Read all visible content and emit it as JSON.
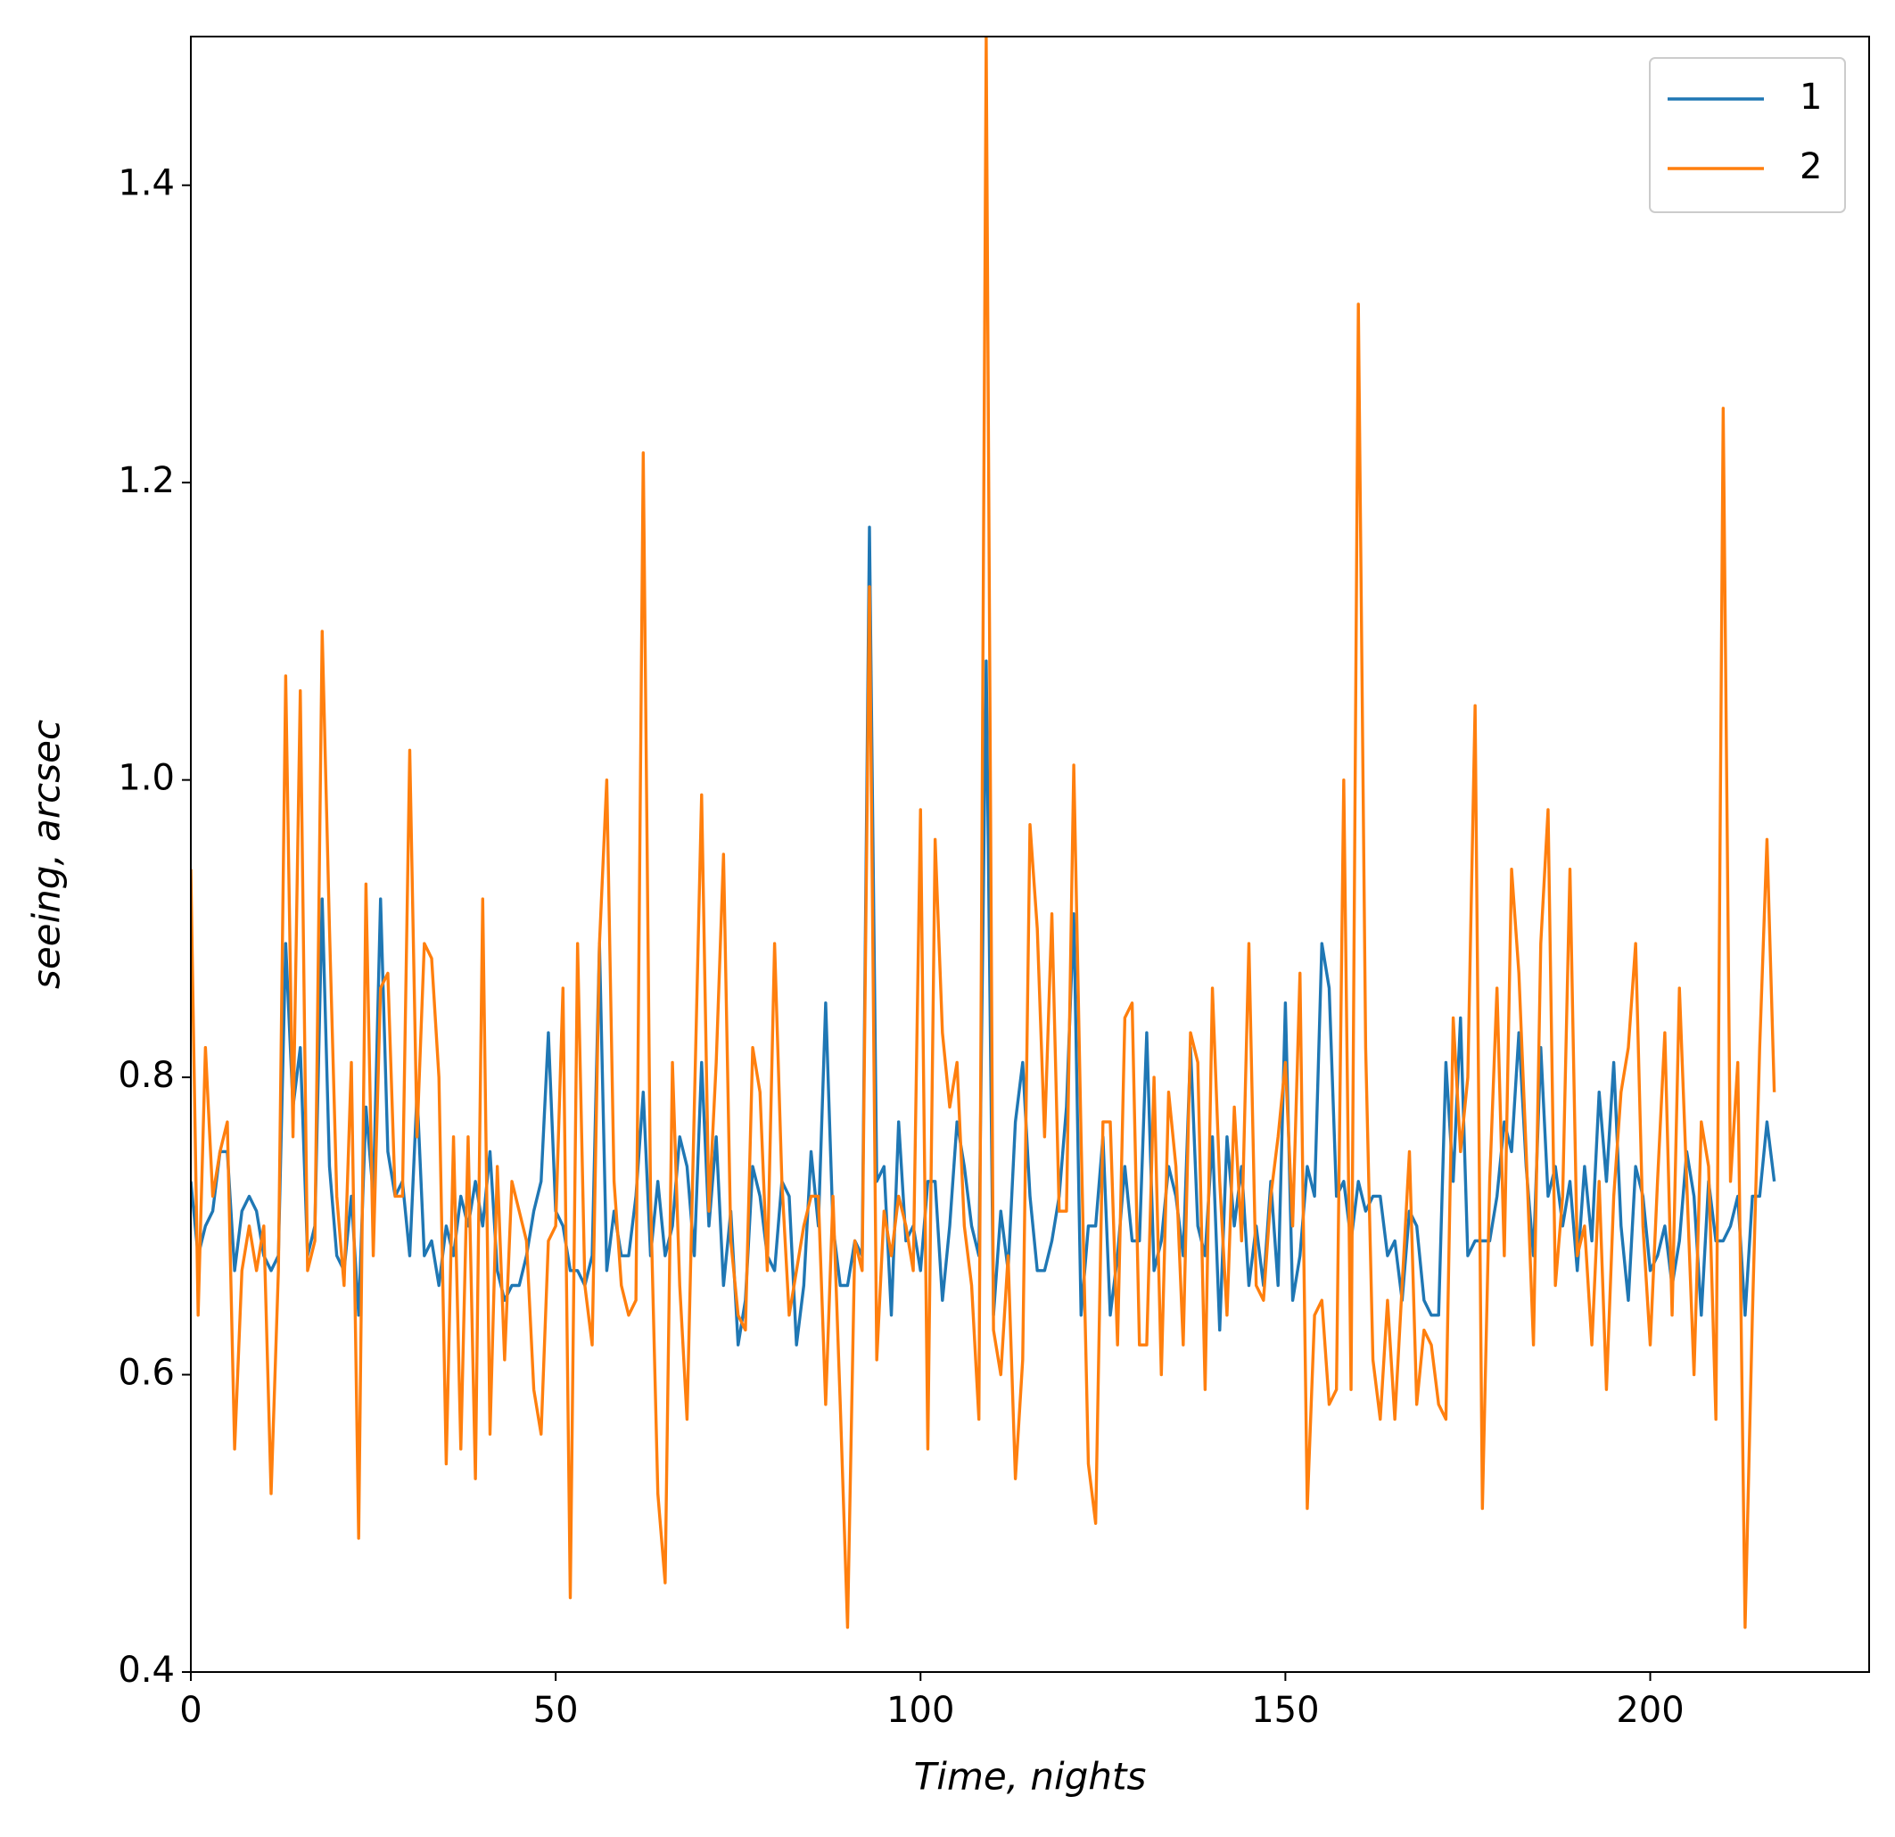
{
  "chart_data": {
    "type": "line",
    "xlabel": "Time, nights",
    "ylabel": "seeing, arcsec",
    "x": [
      0,
      1,
      2,
      3,
      4,
      5,
      6,
      7,
      8,
      9,
      10,
      11,
      12,
      13,
      14,
      15,
      16,
      17,
      18,
      19,
      20,
      21,
      22,
      23,
      24,
      25,
      26,
      27,
      28,
      29,
      30,
      31,
      32,
      33,
      34,
      35,
      36,
      37,
      38,
      39,
      40,
      41,
      42,
      43,
      44,
      45,
      46,
      47,
      48,
      49,
      50,
      51,
      52,
      53,
      54,
      55,
      56,
      57,
      58,
      59,
      60,
      61,
      62,
      63,
      64,
      65,
      66,
      67,
      68,
      69,
      70,
      71,
      72,
      73,
      74,
      75,
      76,
      77,
      78,
      79,
      80,
      81,
      82,
      83,
      84,
      85,
      86,
      87,
      88,
      89,
      90,
      91,
      92,
      93,
      94,
      95,
      96,
      97,
      98,
      99,
      100,
      101,
      102,
      103,
      104,
      105,
      106,
      107,
      108,
      109,
      110,
      111,
      112,
      113,
      114,
      115,
      116,
      117,
      118,
      119,
      120,
      121,
      122,
      123,
      124,
      125,
      126,
      127,
      128,
      129,
      130,
      131,
      132,
      133,
      134,
      135,
      136,
      137,
      138,
      139,
      140,
      141,
      142,
      143,
      144,
      145,
      146,
      147,
      148,
      149,
      150,
      151,
      152,
      153,
      154,
      155,
      156,
      157,
      158,
      159,
      160,
      161,
      162,
      163,
      164,
      165,
      166,
      167,
      168,
      169,
      170,
      171,
      172,
      173,
      174,
      175,
      176,
      177,
      178,
      179,
      180,
      181,
      182,
      183,
      184,
      185,
      186,
      187,
      188,
      189,
      190,
      191,
      192,
      193,
      194,
      195,
      196,
      197,
      198,
      199,
      200,
      201,
      202,
      203,
      204,
      205,
      206,
      207,
      208,
      209,
      210,
      211,
      212,
      213,
      214,
      215,
      216,
      217
    ],
    "series": [
      {
        "name": "1",
        "color": "#1f77b4",
        "values": [
          0.73,
          0.68,
          0.7,
          0.71,
          0.75,
          0.75,
          0.67,
          0.71,
          0.72,
          0.71,
          0.68,
          0.67,
          0.68,
          0.89,
          0.78,
          0.82,
          0.68,
          0.7,
          0.92,
          0.74,
          0.68,
          0.67,
          0.72,
          0.64,
          0.78,
          0.72,
          0.92,
          0.75,
          0.72,
          0.73,
          0.68,
          0.79,
          0.68,
          0.69,
          0.66,
          0.7,
          0.68,
          0.72,
          0.7,
          0.73,
          0.7,
          0.75,
          0.67,
          0.65,
          0.66,
          0.66,
          0.68,
          0.71,
          0.73,
          0.83,
          0.71,
          0.7,
          0.67,
          0.67,
          0.66,
          0.68,
          0.89,
          0.67,
          0.71,
          0.68,
          0.68,
          0.72,
          0.79,
          0.68,
          0.73,
          0.68,
          0.7,
          0.76,
          0.74,
          0.68,
          0.81,
          0.7,
          0.76,
          0.66,
          0.71,
          0.62,
          0.65,
          0.74,
          0.72,
          0.68,
          0.67,
          0.73,
          0.72,
          0.62,
          0.66,
          0.75,
          0.7,
          0.85,
          0.7,
          0.66,
          0.66,
          0.69,
          0.68,
          1.17,
          0.73,
          0.74,
          0.64,
          0.77,
          0.69,
          0.7,
          0.67,
          0.73,
          0.73,
          0.65,
          0.7,
          0.77,
          0.74,
          0.7,
          0.68,
          1.08,
          0.64,
          0.71,
          0.67,
          0.77,
          0.81,
          0.72,
          0.67,
          0.67,
          0.69,
          0.72,
          0.78,
          0.91,
          0.64,
          0.7,
          0.7,
          0.76,
          0.64,
          0.68,
          0.74,
          0.69,
          0.69,
          0.83,
          0.67,
          0.69,
          0.74,
          0.72,
          0.68,
          0.82,
          0.7,
          0.68,
          0.76,
          0.63,
          0.76,
          0.7,
          0.74,
          0.66,
          0.7,
          0.66,
          0.73,
          0.66,
          0.85,
          0.65,
          0.68,
          0.74,
          0.72,
          0.89,
          0.86,
          0.72,
          0.73,
          0.69,
          0.73,
          0.71,
          0.72,
          0.72,
          0.68,
          0.69,
          0.65,
          0.71,
          0.7,
          0.65,
          0.64,
          0.64,
          0.81,
          0.73,
          0.84,
          0.68,
          0.69,
          0.69,
          0.69,
          0.72,
          0.77,
          0.75,
          0.83,
          0.74,
          0.68,
          0.82,
          0.72,
          0.74,
          0.7,
          0.73,
          0.67,
          0.74,
          0.69,
          0.79,
          0.73,
          0.81,
          0.7,
          0.65,
          0.74,
          0.72,
          0.67,
          0.68,
          0.7,
          0.66,
          0.69,
          0.75,
          0.72,
          0.64,
          0.73,
          0.69,
          0.69,
          0.7,
          0.72,
          0.64,
          0.72,
          0.72,
          0.77,
          0.73
        ]
      },
      {
        "name": "2",
        "color": "#ff7f0e",
        "values": [
          0.94,
          0.64,
          0.82,
          0.72,
          0.75,
          0.77,
          0.55,
          0.67,
          0.7,
          0.67,
          0.7,
          0.52,
          0.67,
          1.07,
          0.76,
          1.06,
          0.67,
          0.69,
          1.1,
          0.9,
          0.72,
          0.66,
          0.81,
          0.49,
          0.93,
          0.68,
          0.86,
          0.87,
          0.72,
          0.72,
          1.02,
          0.76,
          0.89,
          0.88,
          0.8,
          0.54,
          0.76,
          0.55,
          0.76,
          0.53,
          0.92,
          0.56,
          0.74,
          0.61,
          0.73,
          0.71,
          0.69,
          0.59,
          0.56,
          0.69,
          0.7,
          0.86,
          0.45,
          0.89,
          0.66,
          0.62,
          0.89,
          1.0,
          0.73,
          0.66,
          0.64,
          0.65,
          1.22,
          0.72,
          0.52,
          0.46,
          0.81,
          0.66,
          0.57,
          0.78,
          0.99,
          0.71,
          0.81,
          0.95,
          0.69,
          0.64,
          0.63,
          0.82,
          0.79,
          0.67,
          0.89,
          0.73,
          0.64,
          0.67,
          0.7,
          0.72,
          0.72,
          0.58,
          0.72,
          0.58,
          0.43,
          0.69,
          0.67,
          1.13,
          0.61,
          0.71,
          0.68,
          0.72,
          0.7,
          0.67,
          0.98,
          0.55,
          0.96,
          0.83,
          0.78,
          0.81,
          0.7,
          0.66,
          0.57,
          1.5,
          0.63,
          0.6,
          0.68,
          0.53,
          0.61,
          0.97,
          0.9,
          0.76,
          0.91,
          0.71,
          0.71,
          1.01,
          0.76,
          0.54,
          0.5,
          0.77,
          0.77,
          0.62,
          0.84,
          0.85,
          0.62,
          0.62,
          0.8,
          0.6,
          0.79,
          0.74,
          0.62,
          0.83,
          0.81,
          0.59,
          0.86,
          0.73,
          0.64,
          0.78,
          0.69,
          0.89,
          0.66,
          0.65,
          0.72,
          0.76,
          0.81,
          0.7,
          0.87,
          0.51,
          0.64,
          0.65,
          0.58,
          0.59,
          1.0,
          0.59,
          1.32,
          0.82,
          0.61,
          0.57,
          0.65,
          0.57,
          0.66,
          0.75,
          0.58,
          0.63,
          0.62,
          0.58,
          0.57,
          0.84,
          0.75,
          0.8,
          1.05,
          0.51,
          0.73,
          0.86,
          0.68,
          0.94,
          0.87,
          0.75,
          0.62,
          0.89,
          0.98,
          0.66,
          0.72,
          0.94,
          0.68,
          0.7,
          0.62,
          0.73,
          0.59,
          0.72,
          0.79,
          0.82,
          0.89,
          0.7,
          0.62,
          0.73,
          0.83,
          0.64,
          0.86,
          0.73,
          0.6,
          0.77,
          0.74,
          0.57,
          1.25,
          0.73,
          0.81,
          0.43,
          0.64,
          0.82,
          0.96,
          0.79
        ]
      }
    ],
    "xlim": [
      0,
      230
    ],
    "ylim": [
      0.4,
      1.5
    ],
    "xticks": [
      0,
      50,
      100,
      150,
      200
    ],
    "yticks": [
      0.4,
      0.6,
      0.8,
      {
        "value": 1,
        "label": "1.0"
      },
      1.2,
      1.4
    ],
    "grid": false,
    "legend": "upper right"
  }
}
